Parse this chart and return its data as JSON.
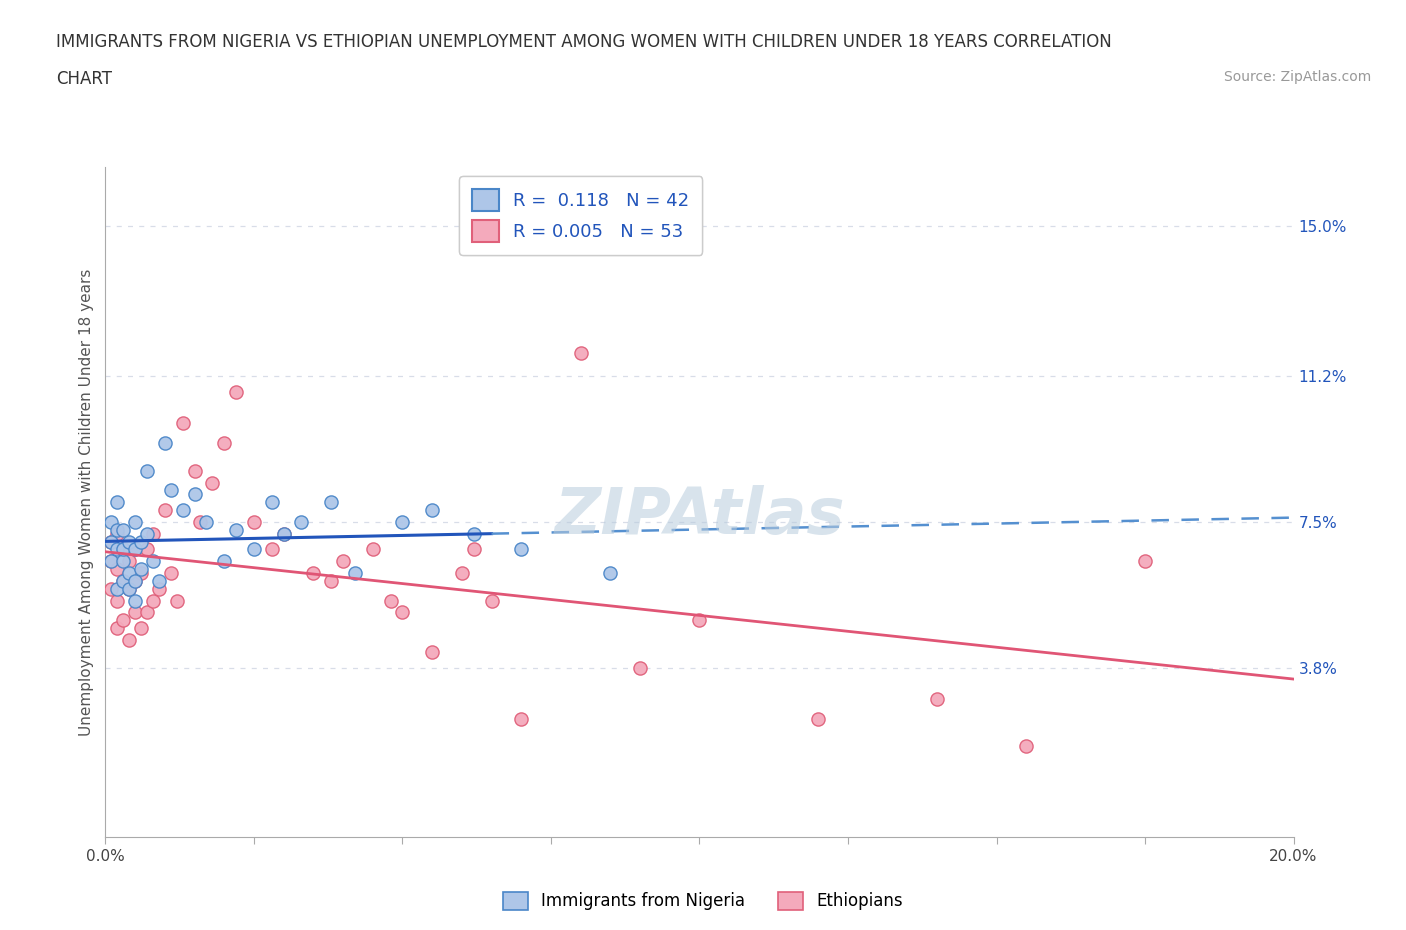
{
  "title_line1": "IMMIGRANTS FROM NIGERIA VS ETHIOPIAN UNEMPLOYMENT AMONG WOMEN WITH CHILDREN UNDER 18 YEARS CORRELATION",
  "title_line2": "CHART",
  "source": "Source: ZipAtlas.com",
  "ylabel": "Unemployment Among Women with Children Under 18 years",
  "xlim": [
    0.0,
    0.2
  ],
  "ylim": [
    -0.005,
    0.165
  ],
  "ytick_right_labels": [
    "3.8%",
    "7.5%",
    "11.2%",
    "15.0%"
  ],
  "ytick_right_vals": [
    0.038,
    0.075,
    0.112,
    0.15
  ],
  "nigeria_color": "#aec6e8",
  "ethiopia_color": "#f4aabc",
  "nigeria_edge": "#4a86c8",
  "ethiopia_edge": "#e0607a",
  "trend_nigeria_solid_color": "#2255bb",
  "trend_nigeria_dash_color": "#5590d0",
  "trend_ethiopia_color": "#e05575",
  "grid_color": "#d8dde8",
  "legend_nigeria_label": "R =  0.118   N = 42",
  "legend_ethiopia_label": "R = 0.005   N = 53",
  "watermark": "ZIPAtlas",
  "legend_bottom_nigeria": "Immigrants from Nigeria",
  "legend_bottom_ethiopia": "Ethiopians",
  "nigeria_x": [
    0.001,
    0.001,
    0.001,
    0.002,
    0.002,
    0.002,
    0.002,
    0.003,
    0.003,
    0.003,
    0.003,
    0.004,
    0.004,
    0.004,
    0.005,
    0.005,
    0.005,
    0.005,
    0.006,
    0.006,
    0.007,
    0.007,
    0.008,
    0.009,
    0.01,
    0.011,
    0.013,
    0.015,
    0.017,
    0.02,
    0.022,
    0.025,
    0.028,
    0.03,
    0.033,
    0.038,
    0.042,
    0.05,
    0.055,
    0.062,
    0.07,
    0.085
  ],
  "nigeria_y": [
    0.065,
    0.07,
    0.075,
    0.058,
    0.068,
    0.073,
    0.08,
    0.06,
    0.065,
    0.068,
    0.073,
    0.058,
    0.062,
    0.07,
    0.055,
    0.06,
    0.068,
    0.075,
    0.063,
    0.07,
    0.088,
    0.072,
    0.065,
    0.06,
    0.095,
    0.083,
    0.078,
    0.082,
    0.075,
    0.065,
    0.073,
    0.068,
    0.08,
    0.072,
    0.075,
    0.08,
    0.062,
    0.075,
    0.078,
    0.072,
    0.068,
    0.062
  ],
  "ethiopia_x": [
    0.001,
    0.001,
    0.001,
    0.002,
    0.002,
    0.002,
    0.002,
    0.003,
    0.003,
    0.003,
    0.004,
    0.004,
    0.004,
    0.005,
    0.005,
    0.005,
    0.006,
    0.006,
    0.007,
    0.007,
    0.008,
    0.008,
    0.009,
    0.01,
    0.011,
    0.012,
    0.013,
    0.015,
    0.016,
    0.018,
    0.02,
    0.022,
    0.025,
    0.028,
    0.03,
    0.035,
    0.038,
    0.04,
    0.045,
    0.048,
    0.05,
    0.055,
    0.06,
    0.062,
    0.065,
    0.07,
    0.08,
    0.09,
    0.1,
    0.12,
    0.14,
    0.155,
    0.175
  ],
  "ethiopia_y": [
    0.058,
    0.065,
    0.07,
    0.048,
    0.055,
    0.063,
    0.072,
    0.05,
    0.06,
    0.068,
    0.045,
    0.058,
    0.065,
    0.052,
    0.06,
    0.068,
    0.048,
    0.062,
    0.052,
    0.068,
    0.055,
    0.072,
    0.058,
    0.078,
    0.062,
    0.055,
    0.1,
    0.088,
    0.075,
    0.085,
    0.095,
    0.108,
    0.075,
    0.068,
    0.072,
    0.062,
    0.06,
    0.065,
    0.068,
    0.055,
    0.052,
    0.042,
    0.062,
    0.068,
    0.055,
    0.025,
    0.118,
    0.038,
    0.05,
    0.025,
    0.03,
    0.018,
    0.065
  ]
}
